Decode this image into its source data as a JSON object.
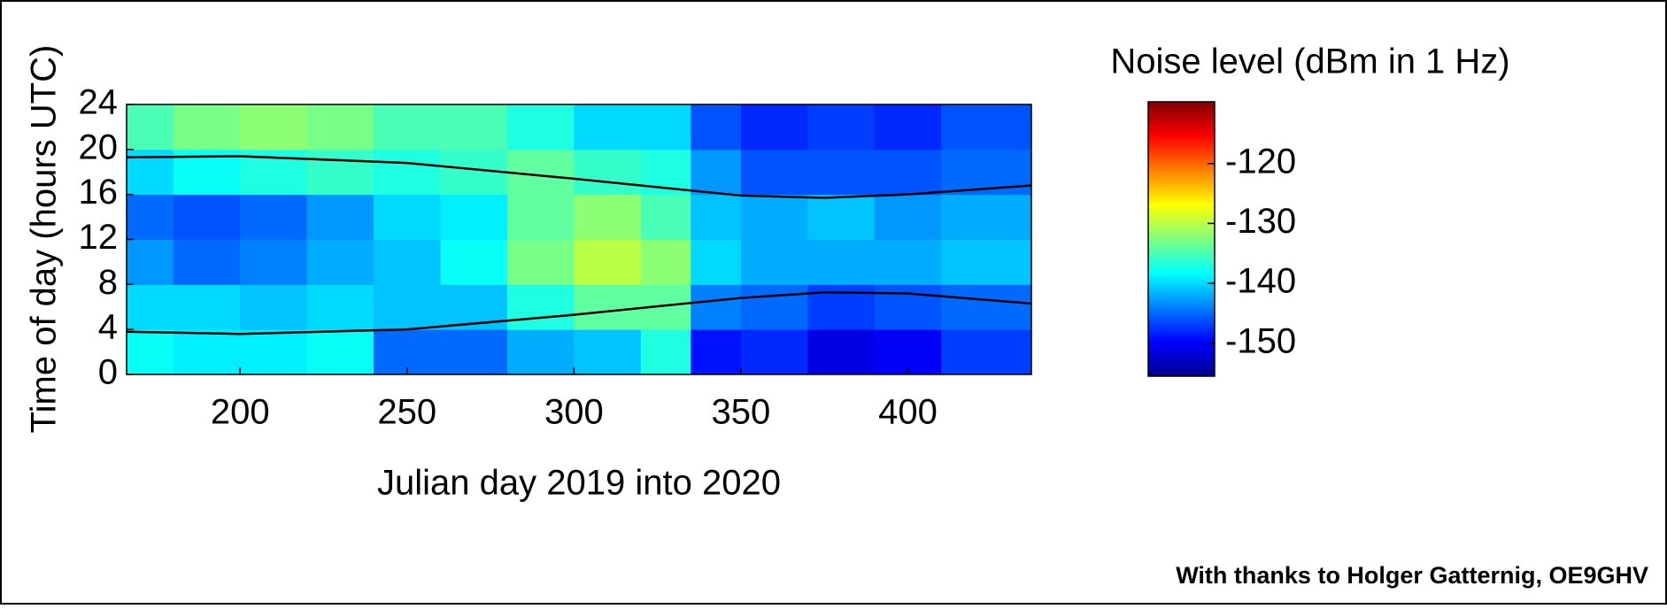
{
  "chart_data": {
    "type": "heatmap",
    "title": "Noise level (dBm in 1 Hz)",
    "xlabel": "Julian day 2019 into 2020",
    "ylabel": "Time of day (hours UTC)",
    "credit": "With thanks to Holger Gatternig, OE9GHV",
    "xbins": [
      166,
      180,
      200,
      220,
      240,
      260,
      280,
      300,
      320,
      335,
      350,
      370,
      390,
      410,
      437
    ],
    "ybins": [
      0,
      4,
      8,
      12,
      16,
      20,
      24
    ],
    "z": [
      [
        -138,
        -139,
        -139,
        -138,
        -145,
        -145,
        -142,
        -141,
        -137,
        -149,
        -148,
        -151,
        -150,
        -147
      ],
      [
        -140,
        -140,
        -141,
        -140,
        -141,
        -141,
        -137,
        -134,
        -134,
        -144,
        -145,
        -147,
        -146,
        -145
      ],
      [
        -143,
        -145,
        -144,
        -142,
        -141,
        -138,
        -133,
        -130,
        -132,
        -140,
        -142,
        -142,
        -142,
        -141
      ],
      [
        -145,
        -146,
        -145,
        -143,
        -140,
        -139,
        -134,
        -132,
        -135,
        -141,
        -142,
        -141,
        -143,
        -142
      ],
      [
        -140,
        -138,
        -137,
        -136,
        -137,
        -136,
        -134,
        -136,
        -137,
        -143,
        -146,
        -146,
        -146,
        -145
      ],
      [
        -135,
        -133,
        -132,
        -133,
        -135,
        -135,
        -137,
        -140,
        -140,
        -146,
        -148,
        -147,
        -148,
        -146
      ]
    ],
    "curves": [
      {
        "color": "#000000",
        "x": [
          166,
          200,
          250,
          300,
          350,
          375,
          400,
          437
        ],
        "y": [
          19.3,
          19.4,
          18.8,
          17.4,
          15.9,
          15.7,
          16.0,
          16.8
        ]
      },
      {
        "color": "#000000",
        "x": [
          166,
          200,
          250,
          300,
          350,
          375,
          400,
          437
        ],
        "y": [
          3.8,
          3.6,
          4.0,
          5.3,
          6.8,
          7.3,
          7.2,
          6.3
        ]
      }
    ],
    "xlim": [
      166,
      437
    ],
    "ylim": [
      0,
      24
    ],
    "xticks": [
      200,
      250,
      300,
      350,
      400
    ],
    "yticks": [
      0,
      4,
      8,
      12,
      16,
      20,
      24
    ],
    "clim": [
      -155.5,
      -109.7
    ],
    "cticks": [
      -150,
      -140,
      -130,
      -120
    ],
    "colormap": "jet"
  }
}
